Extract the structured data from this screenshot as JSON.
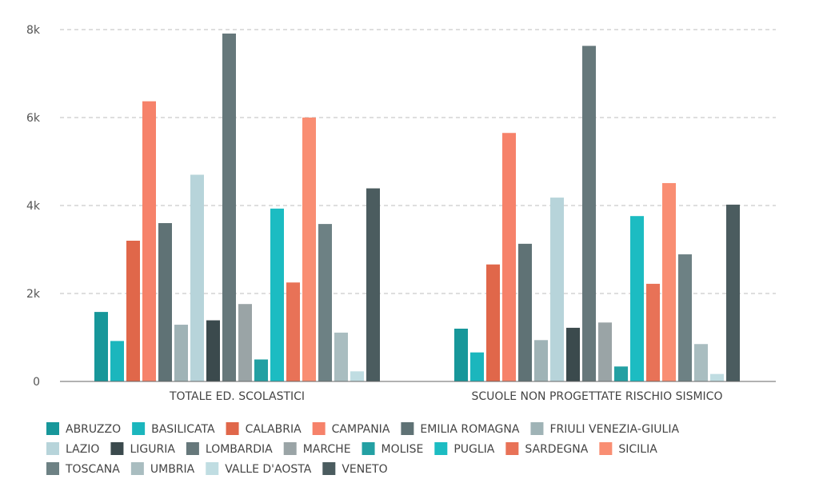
{
  "chart_data": {
    "type": "bar",
    "categories": [
      "TOTALE ED. SCOLASTICI",
      "SCUOLE NON PROGETTATE RISCHIO SISMICO"
    ],
    "y_ticks": [
      {
        "value": 0,
        "label": "0"
      },
      {
        "value": 2000,
        "label": "2k"
      },
      {
        "value": 4000,
        "label": "4k"
      },
      {
        "value": 6000,
        "label": "6k"
      },
      {
        "value": 8000,
        "label": "8k"
      }
    ],
    "ylim": [
      0,
      8000
    ],
    "grid": true,
    "legend_position": "bottom",
    "series": [
      {
        "name": "ABRUZZO",
        "color": "#17979a",
        "values": [
          1580,
          1200
        ]
      },
      {
        "name": "BASILICATA",
        "color": "#1bb6bd",
        "values": [
          920,
          660
        ]
      },
      {
        "name": "CALABRIA",
        "color": "#e0674a",
        "values": [
          3200,
          2660
        ]
      },
      {
        "name": "CAMPANIA",
        "color": "#f6826a",
        "values": [
          6370,
          5650
        ]
      },
      {
        "name": "EMILIA ROMAGNA",
        "color": "#5f7275",
        "values": [
          3600,
          3130
        ]
      },
      {
        "name": "FRIULI VENEZIA-GIULIA",
        "color": "#9fb3b6",
        "values": [
          1290,
          940
        ]
      },
      {
        "name": "LAZIO",
        "color": "#b7d4da",
        "values": [
          4700,
          4180
        ]
      },
      {
        "name": "LIGURIA",
        "color": "#3b4a4d",
        "values": [
          1390,
          1220
        ]
      },
      {
        "name": "LOMBARDIA",
        "color": "#66787b",
        "values": [
          7910,
          7630
        ]
      },
      {
        "name": "MARCHE",
        "color": "#9aa4a6",
        "values": [
          1760,
          1340
        ]
      },
      {
        "name": "MOLISE",
        "color": "#23a0a3",
        "values": [
          500,
          340
        ]
      },
      {
        "name": "PUGLIA",
        "color": "#1cbcc2",
        "values": [
          3930,
          3760
        ]
      },
      {
        "name": "SARDEGNA",
        "color": "#e87257",
        "values": [
          2250,
          2220
        ]
      },
      {
        "name": "SICILIA",
        "color": "#f98e73",
        "values": [
          6000,
          4510
        ]
      },
      {
        "name": "TOSCANA",
        "color": "#6d8184",
        "values": [
          3580,
          2890
        ]
      },
      {
        "name": "UMBRIA",
        "color": "#a9bdc0",
        "values": [
          1110,
          850
        ]
      },
      {
        "name": "VALLE D'AOSTA",
        "color": "#c0dde2",
        "values": [
          230,
          170
        ]
      },
      {
        "name": "VENETO",
        "color": "#4b5c5f",
        "values": [
          4390,
          4020
        ]
      }
    ]
  }
}
